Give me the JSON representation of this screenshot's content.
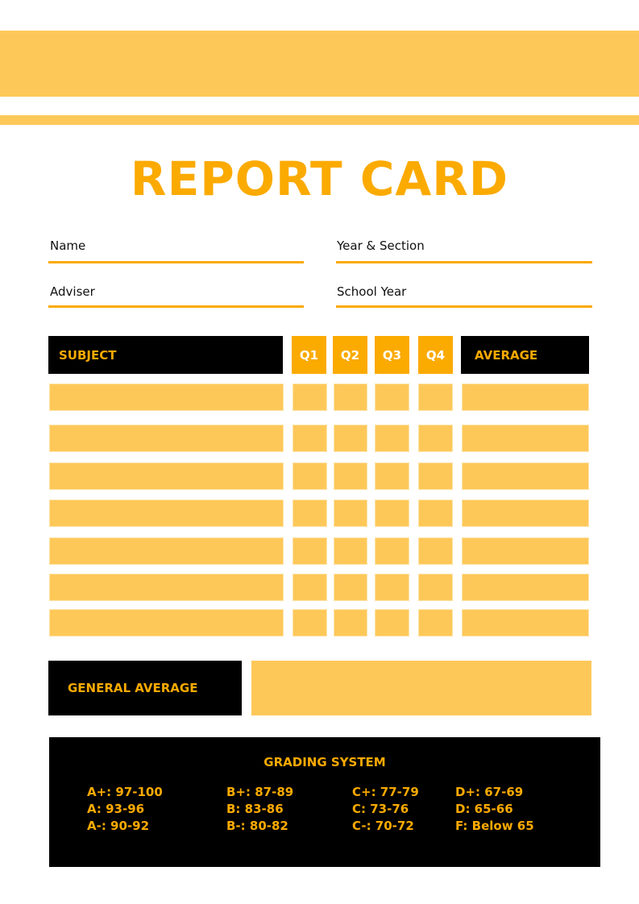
{
  "title": "REPORT CARD",
  "fields": {
    "name": "Name",
    "year_section": "Year & Section",
    "adviser": "Adviser",
    "school_year": "School Year"
  },
  "table": {
    "headers": [
      "SUBJECT",
      "Q1",
      "Q2",
      "Q3",
      "Q4",
      "AVERAGE"
    ],
    "rows": [
      [
        "",
        "",
        "",
        "",
        "",
        ""
      ],
      [
        "",
        "",
        "",
        "",
        "",
        ""
      ],
      [
        "",
        "",
        "",
        "",
        "",
        ""
      ],
      [
        "",
        "",
        "",
        "",
        "",
        ""
      ],
      [
        "",
        "",
        "",
        "",
        "",
        ""
      ],
      [
        "",
        "",
        "",
        "",
        "",
        ""
      ],
      [
        "",
        "",
        "",
        "",
        "",
        ""
      ]
    ]
  },
  "general_average": {
    "label": "GENERAL AVERAGE",
    "value": ""
  },
  "grading": {
    "title": "GRADING SYSTEM",
    "columns": [
      [
        "A+: 97-100",
        "A: 93-96",
        "A-: 90-92"
      ],
      [
        "B+: 87-89",
        "B: 83-86",
        "B-: 80-82"
      ],
      [
        "C+: 77-79",
        "C: 73-76",
        "C-: 70-72"
      ],
      [
        "D+: 67-69",
        "D: 65-66",
        "F: Below 65"
      ]
    ]
  },
  "colors": {
    "accent": "#FBAA00",
    "light": "#FEC859",
    "dark": "#000000"
  }
}
